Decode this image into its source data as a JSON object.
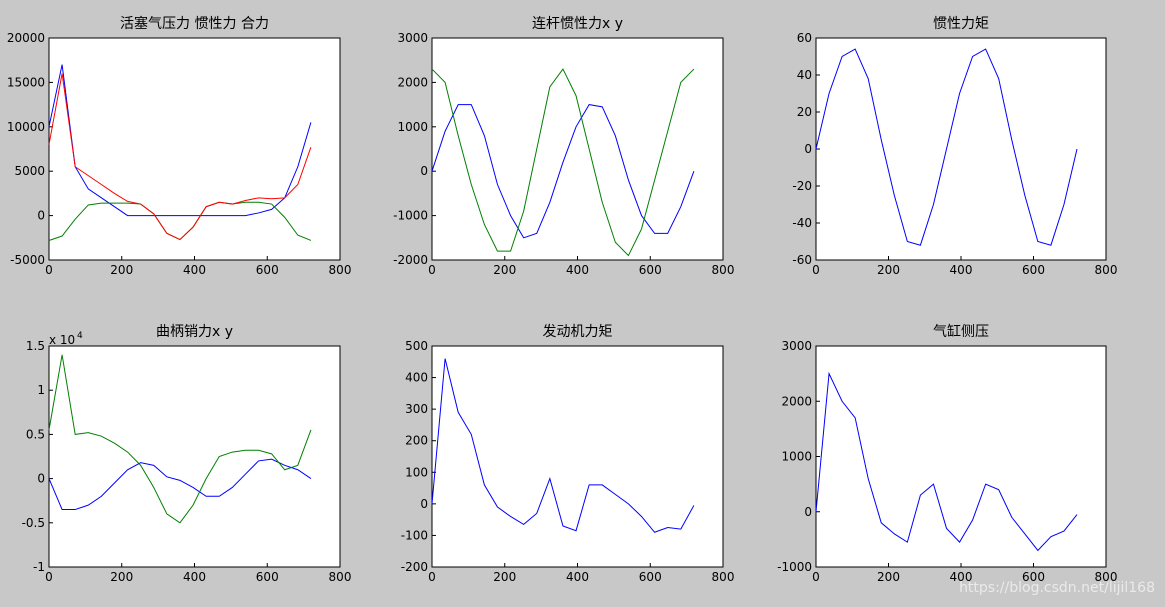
{
  "chart_data": [
    {
      "type": "line",
      "title": "活塞气压力 惯性力  合力",
      "x": [
        0,
        36,
        72,
        108,
        144,
        180,
        216,
        252,
        288,
        324,
        360,
        396,
        432,
        468,
        504,
        540,
        576,
        612,
        648,
        684,
        720
      ],
      "series": [
        {
          "color": "#0000ff",
          "values": [
            10000,
            17000,
            5500,
            3000,
            2000,
            1000,
            0,
            0,
            0,
            0,
            0,
            0,
            0,
            0,
            0,
            0,
            300,
            700,
            2000,
            5500,
            10500
          ]
        },
        {
          "color": "#008000",
          "values": [
            -2800,
            -2300,
            -400,
            1200,
            1400,
            1400,
            1400,
            1300,
            200,
            -2000,
            -2700,
            -1300,
            1000,
            1500,
            1300,
            1500,
            1500,
            1300,
            -200,
            -2200,
            -2800
          ]
        },
        {
          "color": "#ff0000",
          "values": [
            8000,
            16000,
            5500,
            4500,
            3500,
            2500,
            1600,
            1300,
            200,
            -2000,
            -2700,
            -1300,
            1000,
            1500,
            1300,
            1700,
            2000,
            1900,
            2000,
            3500,
            7700
          ]
        }
      ],
      "xlim": [
        0,
        800
      ],
      "xticks": [
        0,
        200,
        400,
        600,
        800
      ],
      "ylim": [
        -5000,
        20000
      ],
      "yticks": [
        -5000,
        0,
        5000,
        10000,
        15000,
        20000
      ]
    },
    {
      "type": "line",
      "title": "连杆惯性力x   y",
      "x": [
        0,
        36,
        72,
        108,
        144,
        180,
        216,
        252,
        288,
        324,
        360,
        396,
        432,
        468,
        504,
        540,
        576,
        612,
        648,
        684,
        720
      ],
      "series": [
        {
          "color": "#0000ff",
          "values": [
            0,
            900,
            1500,
            1500,
            800,
            -300,
            -1000,
            -1500,
            -1400,
            -700,
            200,
            1000,
            1500,
            1450,
            800,
            -200,
            -1000,
            -1400,
            -1400,
            -800,
            0
          ]
        },
        {
          "color": "#008000",
          "values": [
            2300,
            2000,
            800,
            -300,
            -1200,
            -1800,
            -1800,
            -900,
            500,
            1900,
            2300,
            1700,
            500,
            -700,
            -1600,
            -1900,
            -1300,
            -200,
            900,
            2000,
            2300
          ]
        }
      ],
      "xlim": [
        0,
        800
      ],
      "xticks": [
        0,
        200,
        400,
        600,
        800
      ],
      "ylim": [
        -2000,
        3000
      ],
      "yticks": [
        -2000,
        -1000,
        0,
        1000,
        2000,
        3000
      ]
    },
    {
      "type": "line",
      "title": "惯性力矩",
      "x": [
        0,
        36,
        72,
        108,
        144,
        180,
        216,
        252,
        288,
        324,
        360,
        396,
        432,
        468,
        504,
        540,
        576,
        612,
        648,
        684,
        720
      ],
      "series": [
        {
          "color": "#0000ff",
          "values": [
            0,
            30,
            50,
            54,
            38,
            5,
            -25,
            -50,
            -52,
            -30,
            0,
            30,
            50,
            54,
            38,
            5,
            -25,
            -50,
            -52,
            -30,
            0
          ]
        }
      ],
      "xlim": [
        0,
        800
      ],
      "xticks": [
        0,
        200,
        400,
        600,
        800
      ],
      "ylim": [
        -60,
        60
      ],
      "yticks": [
        -60,
        -40,
        -20,
        0,
        20,
        40,
        60
      ]
    },
    {
      "type": "line",
      "title": "曲柄销力x y",
      "annotation": "x 10",
      "annotation_exponent": "4",
      "x": [
        0,
        36,
        72,
        108,
        144,
        180,
        216,
        252,
        288,
        324,
        360,
        396,
        432,
        468,
        504,
        540,
        576,
        612,
        648,
        684,
        720
      ],
      "series": [
        {
          "color": "#0000ff",
          "values": [
            0,
            -0.35,
            -0.35,
            -0.3,
            -0.2,
            -0.05,
            0.1,
            0.18,
            0.15,
            0.02,
            -0.02,
            -0.1,
            -0.2,
            -0.2,
            -0.1,
            0.05,
            0.2,
            0.22,
            0.15,
            0.1,
            0
          ]
        },
        {
          "color": "#008000",
          "values": [
            0.55,
            1.4,
            0.5,
            0.52,
            0.48,
            0.4,
            0.3,
            0.15,
            -0.1,
            -0.4,
            -0.5,
            -0.3,
            0,
            0.25,
            0.3,
            0.32,
            0.32,
            0.28,
            0.1,
            0.15,
            0.55
          ]
        }
      ],
      "xlim": [
        0,
        800
      ],
      "xticks": [
        0,
        200,
        400,
        600,
        800
      ],
      "ylim": [
        -1,
        1.5
      ],
      "yticks": [
        -1,
        -0.5,
        0,
        0.5,
        1,
        1.5
      ]
    },
    {
      "type": "line",
      "title": "发动机力矩",
      "x": [
        0,
        36,
        72,
        108,
        144,
        180,
        216,
        252,
        288,
        324,
        360,
        396,
        432,
        468,
        504,
        540,
        576,
        612,
        648,
        684,
        720
      ],
      "series": [
        {
          "color": "#0000ff",
          "values": [
            0,
            460,
            290,
            220,
            60,
            -10,
            -40,
            -65,
            -30,
            80,
            -70,
            -85,
            60,
            60,
            30,
            0,
            -40,
            -90,
            -75,
            -80,
            -5
          ]
        }
      ],
      "xlim": [
        0,
        800
      ],
      "xticks": [
        0,
        200,
        400,
        600,
        800
      ],
      "ylim": [
        -200,
        500
      ],
      "yticks": [
        -200,
        -100,
        0,
        100,
        200,
        300,
        400,
        500
      ]
    },
    {
      "type": "line",
      "title": "气缸侧压",
      "x": [
        0,
        36,
        72,
        108,
        144,
        180,
        216,
        252,
        288,
        324,
        360,
        396,
        432,
        468,
        504,
        540,
        576,
        612,
        648,
        684,
        720
      ],
      "series": [
        {
          "color": "#0000ff",
          "values": [
            0,
            2500,
            2000,
            1700,
            600,
            -200,
            -400,
            -550,
            300,
            500,
            -300,
            -550,
            -150,
            500,
            400,
            -100,
            -400,
            -700,
            -450,
            -350,
            -50
          ]
        }
      ],
      "xlim": [
        0,
        800
      ],
      "xticks": [
        0,
        200,
        400,
        600,
        800
      ],
      "ylim": [
        -1000,
        3000
      ],
      "yticks": [
        -1000,
        0,
        1000,
        2000,
        3000
      ]
    }
  ],
  "watermark": "https://blog.csdn.net/lijil168"
}
